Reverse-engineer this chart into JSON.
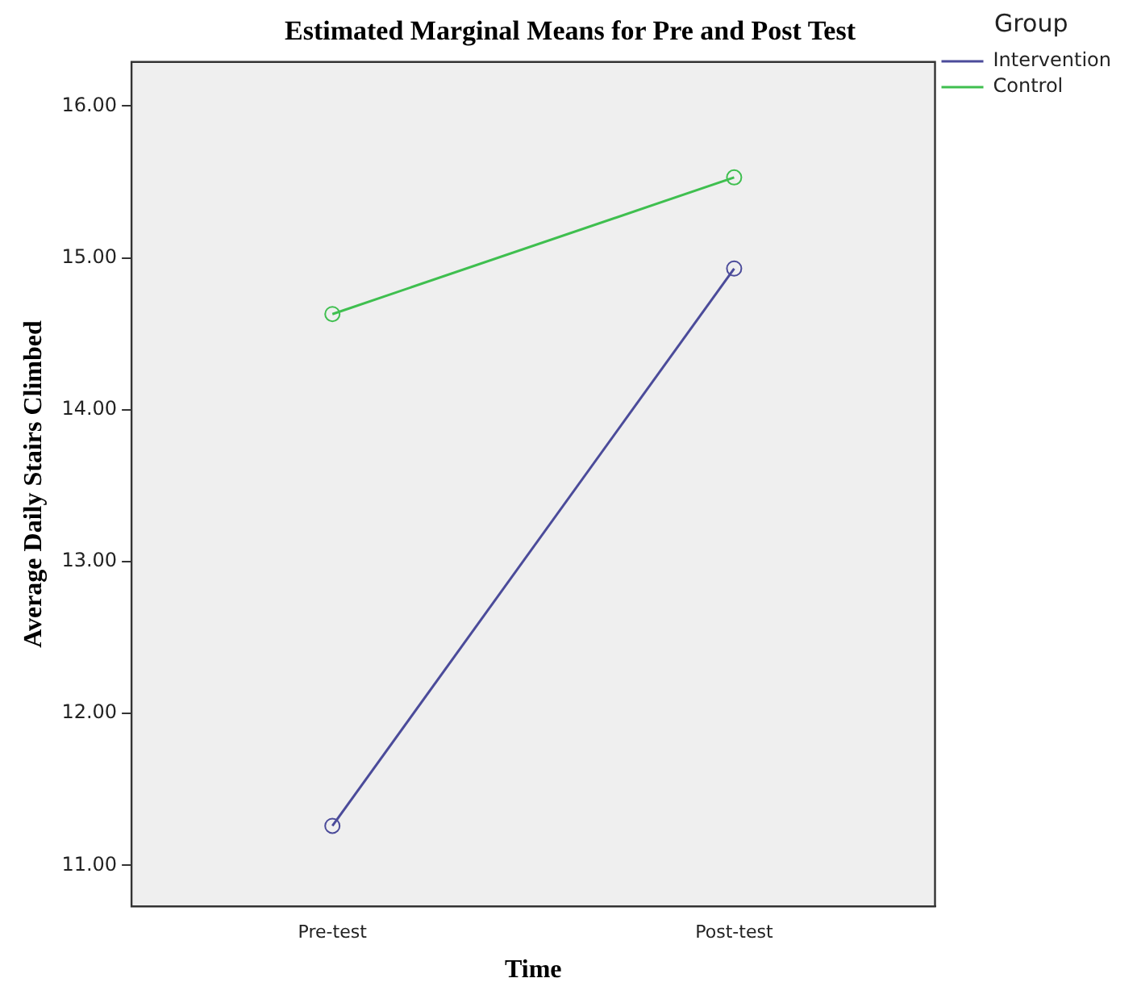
{
  "chart_data": {
    "type": "line",
    "title": "Estimated Marginal Means for Pre and Post Test",
    "xlabel": "Time",
    "ylabel": "Average Daily Stairs Climbed",
    "legend_title": "Group",
    "legend": "top right",
    "grid": false,
    "marker": "circle",
    "line_style": "solid",
    "categories": [
      "Pre-test",
      "Post-test"
    ],
    "ylim": [
      10.73,
      16.29
    ],
    "yticks": [
      {
        "value": 11,
        "label": "11.00"
      },
      {
        "value": 12,
        "label": "12.00"
      },
      {
        "value": 13,
        "label": "13.00"
      },
      {
        "value": 14,
        "label": "14.00"
      },
      {
        "value": 15,
        "label": "15.00"
      },
      {
        "value": 16,
        "label": "16.00"
      }
    ],
    "series": [
      {
        "name": "Intervention",
        "color": "#4b4b9a",
        "values": [
          11.26,
          14.93
        ]
      },
      {
        "name": "Control",
        "color": "#3fbf4f",
        "values": [
          14.63,
          15.53
        ]
      }
    ]
  }
}
